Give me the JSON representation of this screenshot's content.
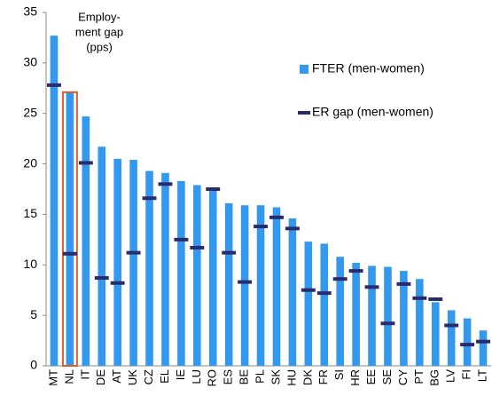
{
  "chart_data": {
    "type": "bar",
    "categories": [
      "MT",
      "NL",
      "IT",
      "DE",
      "AT",
      "UK",
      "CZ",
      "EL",
      "IE",
      "LU",
      "RO",
      "ES",
      "BE",
      "PL",
      "SK",
      "HU",
      "DK",
      "FR",
      "SI",
      "HR",
      "EE",
      "SE",
      "CY",
      "PT",
      "BG",
      "LV",
      "FI",
      "LT"
    ],
    "series": [
      {
        "name": "FTER (men-women)",
        "color": "#3399ee",
        "kind": "bar",
        "values": [
          32.7,
          27.1,
          24.7,
          21.7,
          20.5,
          20.4,
          19.3,
          19.1,
          18.3,
          17.9,
          17.6,
          16.1,
          15.9,
          15.9,
          15.7,
          14.6,
          12.3,
          12.1,
          10.8,
          10.2,
          9.9,
          9.8,
          9.4,
          8.6,
          6.3,
          5.5,
          4.7,
          3.5
        ]
      },
      {
        "name": "ER gap (men-women)",
        "color": "#2b2a6b",
        "kind": "marker",
        "values": [
          27.8,
          11.1,
          20.1,
          8.7,
          8.2,
          11.2,
          16.6,
          18.0,
          12.5,
          11.7,
          17.5,
          11.2,
          8.3,
          13.8,
          14.7,
          13.6,
          7.5,
          7.2,
          8.6,
          9.4,
          7.8,
          4.2,
          8.1,
          6.7,
          6.6,
          4.0,
          2.1,
          2.4
        ]
      }
    ],
    "annotation": [
      "Employ-",
      "ment gap",
      "(pps)"
    ],
    "highlight": {
      "category_index": 1,
      "color": "#e05a2b"
    },
    "ylim": [
      0,
      35
    ],
    "yticks": [
      0,
      5,
      10,
      15,
      20,
      25,
      30,
      35
    ],
    "grid": false,
    "legend": "right"
  }
}
